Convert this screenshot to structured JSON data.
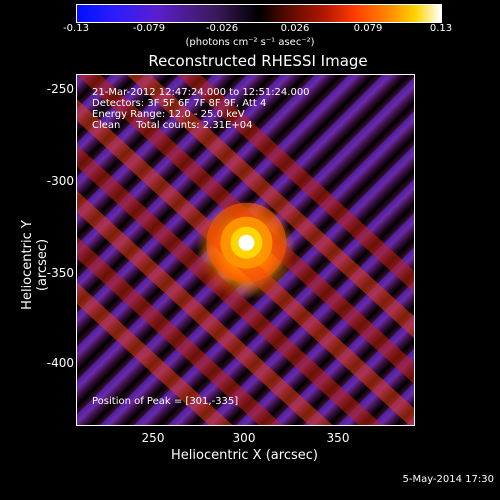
{
  "colorbar": {
    "ticks": [
      "-0.13",
      "-0.079",
      "-0.026",
      "0.026",
      "0.079",
      "0.13"
    ],
    "units": "(photons cm⁻² s⁻¹ asec⁻²)"
  },
  "title": "Reconstructed RHESSI Image",
  "info_lines": [
    "21-Mar-2012 12:47:24.000 to 12:51:24.000",
    "Detectors: 3F 5F 6F 7F 8F 9F, Att 4",
    "Energy Range: 12.0 - 25.0 keV",
    "Clean     Total counts: 2.31E+04"
  ],
  "peak_text": "Position of Peak = [301,-335]",
  "axes": {
    "x_ticks": [
      "250",
      "300",
      "350"
    ],
    "y_ticks": [
      "-250",
      "-300",
      "-350",
      "-400"
    ],
    "x_label": "Heliocentric X (arcsec)",
    "y_label": "Heliocentric Y (arcsec)"
  },
  "timestamp": "5-May-2014 17:30",
  "chart_data": {
    "type": "heatmap",
    "title": "Reconstructed RHESSI Image",
    "xlabel": "Heliocentric X (arcsec)",
    "ylabel": "Heliocentric Y (arcsec)",
    "xlim": [
      208,
      393
    ],
    "ylim": [
      -435,
      -243
    ],
    "x_ticks": [
      250,
      300,
      350
    ],
    "y_ticks": [
      -250,
      -300,
      -350,
      -400
    ],
    "colorbar_range": [
      -0.13,
      0.13
    ],
    "peak": [
      301,
      -335
    ],
    "colormap_colors": [
      "#0010ff",
      "#000000",
      "#ff3a00",
      "#ffd400",
      "#ffffff"
    ]
  }
}
